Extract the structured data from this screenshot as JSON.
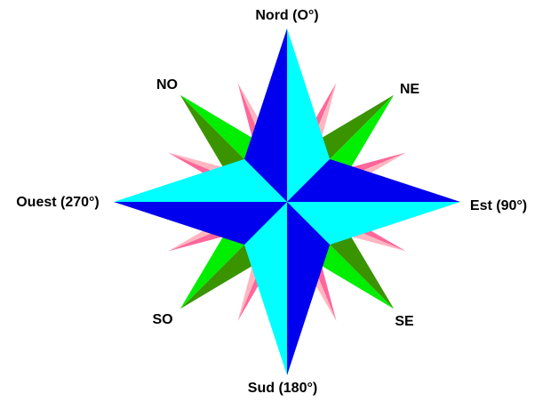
{
  "labels": {
    "north": "Nord (O°)",
    "northeast": "NE",
    "east": "Est (90°)",
    "southeast": "SE",
    "south": "Sud (180°)",
    "southwest": "SO",
    "west": "Ouest (270°)",
    "northwest": "NO"
  }
}
